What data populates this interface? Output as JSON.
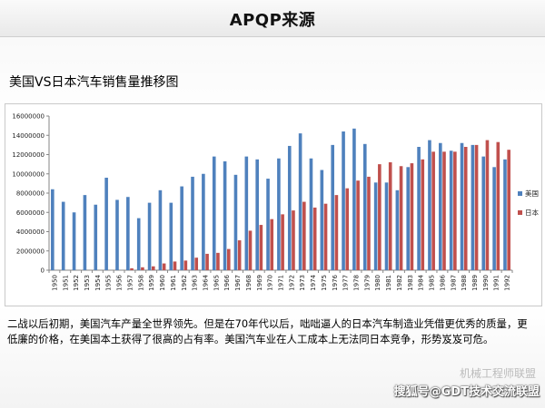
{
  "slide_title": "APQP来源",
  "chart_data": {
    "type": "bar",
    "title": "美国VS日本汽车销售量推移图",
    "categories": [
      "1950",
      "1951",
      "1952",
      "1953",
      "1954",
      "1955",
      "1956",
      "1957",
      "1958",
      "1959",
      "1960",
      "1961",
      "1962",
      "1963",
      "1964",
      "1965",
      "1966",
      "1967",
      "1968",
      "1969",
      "1970",
      "1971",
      "1972",
      "1973",
      "1974",
      "1975",
      "1976",
      "1977",
      "1978",
      "1979",
      "1980",
      "1981",
      "1982",
      "1983",
      "1984",
      "1985",
      "1986",
      "1987",
      "1988",
      "1989",
      "1990",
      "1991",
      "1992"
    ],
    "series": [
      {
        "name": "美国",
        "color": "#4f81bd",
        "values": [
          8400000,
          7100000,
          6000000,
          7800000,
          6800000,
          9600000,
          7300000,
          7600000,
          5400000,
          7000000,
          8300000,
          7000000,
          8700000,
          9700000,
          10000000,
          11800000,
          11300000,
          9900000,
          11800000,
          11500000,
          9500000,
          11600000,
          12900000,
          14200000,
          11600000,
          10400000,
          13000000,
          14400000,
          14700000,
          13100000,
          9100000,
          9100000,
          8300000,
          10700000,
          12800000,
          13500000,
          13200000,
          12400000,
          13200000,
          13000000,
          11800000,
          10700000,
          11500000
        ]
      },
      {
        "name": "日本",
        "color": "#c0504d",
        "values": [
          0,
          0,
          0,
          0,
          0,
          0,
          0,
          200000,
          300000,
          400000,
          700000,
          900000,
          1000000,
          1300000,
          1700000,
          1800000,
          2200000,
          3100000,
          4100000,
          4700000,
          5300000,
          5800000,
          6200000,
          7100000,
          6500000,
          6900000,
          7800000,
          8500000,
          9300000,
          9700000,
          11000000,
          11200000,
          10800000,
          11100000,
          11500000,
          12300000,
          12300000,
          12300000,
          12800000,
          13000000,
          13500000,
          13300000,
          12500000
        ]
      }
    ],
    "y_ticks": [
      "0",
      "2000000",
      "4000000",
      "6000000",
      "8000000",
      "10000000",
      "12000000",
      "14000000",
      "16000000"
    ],
    "ylim": [
      0,
      16000000
    ],
    "legend_position": "right",
    "grid": false
  },
  "caption": "二战以后初期，美国汽车产量全世界领先。但是在70年代以后，咄咄逼人的日本汽车制造业凭借更优秀的质量，更低廉的价格，在美国本土获得了很高的占有率。美国汽车业在人工成本上无法同日本竞争，形势岌岌可危。",
  "watermark_1": "机械工程师联盟",
  "watermark_2": "搜狐号@GDT技术交流联盟"
}
